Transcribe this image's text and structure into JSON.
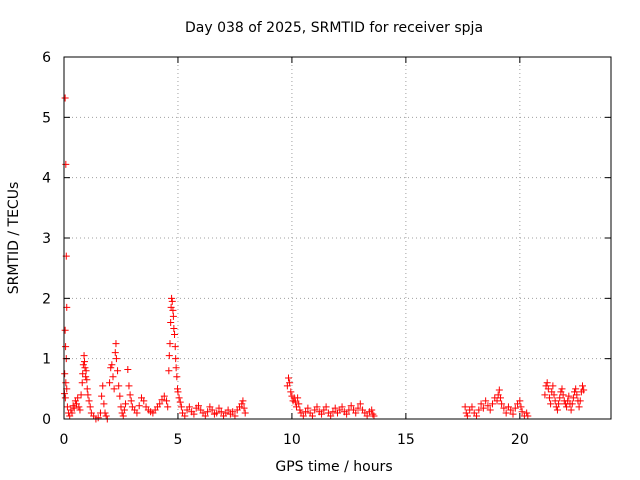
{
  "chart_data": {
    "type": "scatter",
    "title": "Day 038 of 2025, SRMTID for receiver spja",
    "xlabel": "GPS time / hours",
    "ylabel": "SRMTID / TECUs",
    "xlim": [
      0,
      24
    ],
    "ylim": [
      0,
      6
    ],
    "xticks": [
      0,
      5,
      10,
      15,
      20
    ],
    "yticks": [
      0,
      1,
      2,
      3,
      4,
      5,
      6
    ],
    "grid": true,
    "marker": "+",
    "color": "#ff0000",
    "series": [
      {
        "name": "SRMTID",
        "points": [
          [
            0.05,
            5.32
          ],
          [
            0.08,
            4.22
          ],
          [
            0.1,
            2.7
          ],
          [
            0.12,
            1.85
          ],
          [
            0.05,
            1.47
          ],
          [
            0.07,
            1.2
          ],
          [
            0.1,
            1.0
          ],
          [
            0.03,
            0.75
          ],
          [
            0.08,
            0.6
          ],
          [
            0.12,
            0.5
          ],
          [
            0.02,
            0.42
          ],
          [
            0.06,
            0.35
          ],
          [
            0.15,
            0.2
          ],
          [
            0.2,
            0.1
          ],
          [
            0.25,
            0.05
          ],
          [
            0.3,
            0.15
          ],
          [
            0.35,
            0.1
          ],
          [
            0.4,
            0.22
          ],
          [
            0.45,
            0.18
          ],
          [
            0.5,
            0.3
          ],
          [
            0.55,
            0.25
          ],
          [
            0.6,
            0.35
          ],
          [
            0.65,
            0.2
          ],
          [
            0.7,
            0.15
          ],
          [
            0.75,
            0.4
          ],
          [
            0.8,
            0.6
          ],
          [
            0.82,
            0.75
          ],
          [
            0.85,
            0.9
          ],
          [
            0.88,
            1.05
          ],
          [
            0.9,
            0.95
          ],
          [
            0.92,
            0.85
          ],
          [
            0.95,
            0.7
          ],
          [
            0.97,
            0.8
          ],
          [
            1.0,
            0.65
          ],
          [
            1.02,
            0.5
          ],
          [
            1.05,
            0.4
          ],
          [
            1.1,
            0.3
          ],
          [
            1.15,
            0.2
          ],
          [
            1.2,
            0.1
          ],
          [
            1.3,
            0.05
          ],
          [
            1.4,
            0.0
          ],
          [
            1.5,
            0.02
          ],
          [
            1.6,
            0.1
          ],
          [
            1.65,
            0.38
          ],
          [
            1.7,
            0.55
          ],
          [
            1.75,
            0.25
          ],
          [
            1.8,
            0.1
          ],
          [
            1.85,
            0.05
          ],
          [
            1.9,
            0.0
          ],
          [
            2.0,
            0.6
          ],
          [
            2.05,
            0.85
          ],
          [
            2.1,
            0.9
          ],
          [
            2.15,
            0.7
          ],
          [
            2.2,
            0.5
          ],
          [
            2.25,
            1.1
          ],
          [
            2.28,
            1.25
          ],
          [
            2.3,
            1.0
          ],
          [
            2.35,
            0.8
          ],
          [
            2.4,
            0.55
          ],
          [
            2.45,
            0.38
          ],
          [
            2.5,
            0.2
          ],
          [
            2.55,
            0.1
          ],
          [
            2.6,
            0.05
          ],
          [
            2.65,
            0.15
          ],
          [
            2.7,
            0.25
          ],
          [
            2.8,
            0.82
          ],
          [
            2.85,
            0.55
          ],
          [
            2.9,
            0.4
          ],
          [
            2.95,
            0.3
          ],
          [
            3.0,
            0.2
          ],
          [
            3.1,
            0.15
          ],
          [
            3.2,
            0.1
          ],
          [
            3.3,
            0.22
          ],
          [
            3.4,
            0.35
          ],
          [
            3.5,
            0.3
          ],
          [
            3.6,
            0.2
          ],
          [
            3.7,
            0.15
          ],
          [
            3.8,
            0.12
          ],
          [
            3.9,
            0.1
          ],
          [
            4.0,
            0.15
          ],
          [
            4.1,
            0.2
          ],
          [
            4.2,
            0.25
          ],
          [
            4.3,
            0.32
          ],
          [
            4.4,
            0.38
          ],
          [
            4.5,
            0.3
          ],
          [
            4.55,
            0.2
          ],
          [
            4.6,
            0.8
          ],
          [
            4.62,
            1.05
          ],
          [
            4.65,
            1.25
          ],
          [
            4.68,
            1.6
          ],
          [
            4.7,
            1.85
          ],
          [
            4.72,
            2.0
          ],
          [
            4.75,
            1.95
          ],
          [
            4.78,
            1.8
          ],
          [
            4.8,
            1.7
          ],
          [
            4.82,
            1.5
          ],
          [
            4.85,
            1.4
          ],
          [
            4.88,
            1.2
          ],
          [
            4.9,
            1.0
          ],
          [
            4.92,
            0.85
          ],
          [
            4.95,
            0.7
          ],
          [
            4.98,
            0.5
          ],
          [
            5.0,
            0.45
          ],
          [
            5.05,
            0.35
          ],
          [
            5.1,
            0.28
          ],
          [
            5.15,
            0.2
          ],
          [
            5.2,
            0.1
          ],
          [
            5.3,
            0.05
          ],
          [
            5.4,
            0.15
          ],
          [
            5.5,
            0.2
          ],
          [
            5.6,
            0.12
          ],
          [
            5.7,
            0.08
          ],
          [
            5.8,
            0.18
          ],
          [
            5.9,
            0.22
          ],
          [
            6.0,
            0.15
          ],
          [
            6.1,
            0.1
          ],
          [
            6.2,
            0.05
          ],
          [
            6.3,
            0.12
          ],
          [
            6.4,
            0.2
          ],
          [
            6.5,
            0.15
          ],
          [
            6.6,
            0.08
          ],
          [
            6.7,
            0.1
          ],
          [
            6.8,
            0.18
          ],
          [
            6.9,
            0.12
          ],
          [
            7.0,
            0.05
          ],
          [
            7.1,
            0.1
          ],
          [
            7.2,
            0.15
          ],
          [
            7.3,
            0.08
          ],
          [
            7.4,
            0.12
          ],
          [
            7.5,
            0.05
          ],
          [
            7.6,
            0.15
          ],
          [
            7.7,
            0.2
          ],
          [
            7.8,
            0.25
          ],
          [
            7.85,
            0.3
          ],
          [
            7.9,
            0.18
          ],
          [
            7.95,
            0.1
          ],
          [
            9.8,
            0.55
          ],
          [
            9.85,
            0.68
          ],
          [
            9.9,
            0.6
          ],
          [
            9.95,
            0.45
          ],
          [
            10.0,
            0.38
          ],
          [
            10.05,
            0.3
          ],
          [
            10.1,
            0.35
          ],
          [
            10.15,
            0.28
          ],
          [
            10.2,
            0.2
          ],
          [
            10.25,
            0.35
          ],
          [
            10.3,
            0.25
          ],
          [
            10.35,
            0.15
          ],
          [
            10.4,
            0.1
          ],
          [
            10.5,
            0.05
          ],
          [
            10.6,
            0.12
          ],
          [
            10.7,
            0.18
          ],
          [
            10.8,
            0.1
          ],
          [
            10.9,
            0.05
          ],
          [
            11.0,
            0.15
          ],
          [
            11.1,
            0.2
          ],
          [
            11.2,
            0.12
          ],
          [
            11.3,
            0.08
          ],
          [
            11.4,
            0.15
          ],
          [
            11.5,
            0.2
          ],
          [
            11.6,
            0.1
          ],
          [
            11.7,
            0.05
          ],
          [
            11.8,
            0.12
          ],
          [
            11.9,
            0.18
          ],
          [
            12.0,
            0.1
          ],
          [
            12.1,
            0.15
          ],
          [
            12.2,
            0.2
          ],
          [
            12.3,
            0.12
          ],
          [
            12.4,
            0.08
          ],
          [
            12.5,
            0.15
          ],
          [
            12.6,
            0.22
          ],
          [
            12.7,
            0.15
          ],
          [
            12.8,
            0.1
          ],
          [
            12.9,
            0.18
          ],
          [
            13.0,
            0.25
          ],
          [
            13.1,
            0.15
          ],
          [
            13.2,
            0.1
          ],
          [
            13.3,
            0.05
          ],
          [
            13.4,
            0.12
          ],
          [
            13.5,
            0.15
          ],
          [
            13.55,
            0.08
          ],
          [
            13.6,
            0.05
          ],
          [
            17.6,
            0.2
          ],
          [
            17.65,
            0.1
          ],
          [
            17.7,
            0.05
          ],
          [
            17.8,
            0.15
          ],
          [
            17.9,
            0.2
          ],
          [
            18.0,
            0.1
          ],
          [
            18.1,
            0.05
          ],
          [
            18.2,
            0.15
          ],
          [
            18.3,
            0.25
          ],
          [
            18.4,
            0.18
          ],
          [
            18.5,
            0.3
          ],
          [
            18.6,
            0.22
          ],
          [
            18.7,
            0.15
          ],
          [
            18.8,
            0.25
          ],
          [
            18.9,
            0.35
          ],
          [
            19.0,
            0.3
          ],
          [
            19.05,
            0.4
          ],
          [
            19.1,
            0.48
          ],
          [
            19.15,
            0.35
          ],
          [
            19.2,
            0.25
          ],
          [
            19.3,
            0.18
          ],
          [
            19.4,
            0.1
          ],
          [
            19.5,
            0.2
          ],
          [
            19.6,
            0.15
          ],
          [
            19.7,
            0.08
          ],
          [
            19.8,
            0.18
          ],
          [
            19.9,
            0.25
          ],
          [
            20.0,
            0.3
          ],
          [
            20.05,
            0.2
          ],
          [
            20.1,
            0.12
          ],
          [
            20.2,
            0.05
          ],
          [
            20.3,
            0.1
          ],
          [
            20.35,
            0.05
          ],
          [
            21.1,
            0.4
          ],
          [
            21.15,
            0.55
          ],
          [
            21.2,
            0.6
          ],
          [
            21.25,
            0.5
          ],
          [
            21.3,
            0.35
          ],
          [
            21.35,
            0.25
          ],
          [
            21.4,
            0.45
          ],
          [
            21.45,
            0.55
          ],
          [
            21.5,
            0.4
          ],
          [
            21.55,
            0.3
          ],
          [
            21.6,
            0.2
          ],
          [
            21.65,
            0.15
          ],
          [
            21.7,
            0.25
          ],
          [
            21.75,
            0.35
          ],
          [
            21.8,
            0.45
          ],
          [
            21.85,
            0.5
          ],
          [
            21.9,
            0.4
          ],
          [
            21.95,
            0.3
          ],
          [
            22.0,
            0.25
          ],
          [
            22.05,
            0.2
          ],
          [
            22.1,
            0.3
          ],
          [
            22.15,
            0.38
          ],
          [
            22.2,
            0.25
          ],
          [
            22.25,
            0.15
          ],
          [
            22.3,
            0.25
          ],
          [
            22.35,
            0.35
          ],
          [
            22.4,
            0.45
          ],
          [
            22.45,
            0.5
          ],
          [
            22.5,
            0.4
          ],
          [
            22.55,
            0.3
          ],
          [
            22.6,
            0.2
          ],
          [
            22.65,
            0.3
          ],
          [
            22.7,
            0.45
          ],
          [
            22.75,
            0.55
          ],
          [
            22.8,
            0.48
          ]
        ]
      }
    ]
  }
}
